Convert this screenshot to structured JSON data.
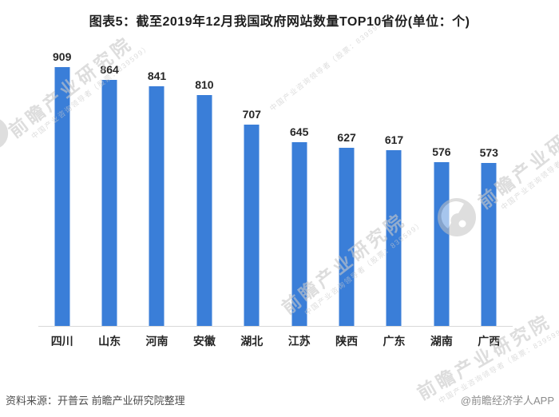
{
  "title": "图表5：截至2019年12月我国政府网站数量TOP10省份(单位：个)",
  "chart_data": {
    "type": "bar",
    "title": "图表5：截至2019年12月我国政府网站数量TOP10省份(单位：个)",
    "unit": "个",
    "categories": [
      "四川",
      "山东",
      "河南",
      "安徽",
      "湖北",
      "江苏",
      "陕西",
      "广东",
      "湖南",
      "广西"
    ],
    "values": [
      909,
      864,
      841,
      810,
      707,
      645,
      627,
      617,
      576,
      573
    ],
    "xlabel": "",
    "ylabel": "",
    "ylim": [
      0,
      975
    ],
    "grid": false,
    "legend": false,
    "show_value_labels": true,
    "bar_color": "#3a7ed8"
  },
  "watermark": {
    "logo_name": "qianzhan-logo",
    "text_large": "前瞻产业研究院",
    "text_small": "中国产业咨询领导者（股票：839599）"
  },
  "footer": {
    "source": "资料来源：开普云 前瞻产业研究院整理",
    "credit": "@前瞻经济学人APP"
  },
  "colors": {
    "bar": "#3a7ed8",
    "title_text": "#1f1f1f",
    "label_text": "#262626",
    "axis_line": "#d9d9d9",
    "source_text": "#4d4d4d",
    "credit_text": "#8c8c8c",
    "watermark": "#c9c9c9"
  }
}
